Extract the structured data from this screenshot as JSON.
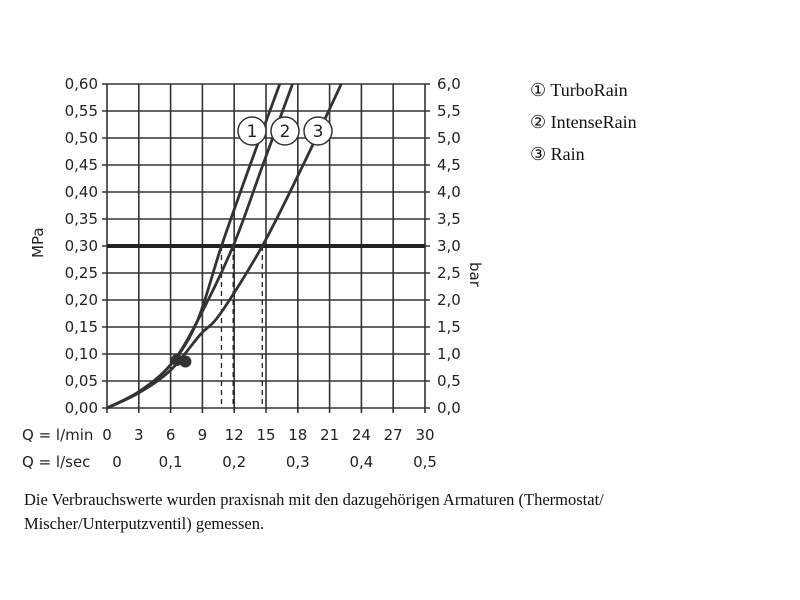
{
  "chart_data": {
    "type": "line",
    "xlabel": "Q = l/min",
    "xlabel2": "Q = l/sec",
    "ylabel": "MPa",
    "ylabel_right": "bar",
    "xlim": [
      0,
      30
    ],
    "ylim": [
      0,
      0.6
    ],
    "x_ticks": [
      "0",
      "3",
      "6",
      "9",
      "12",
      "15",
      "18",
      "21",
      "24",
      "27",
      "30"
    ],
    "x2_ticks": [
      "0",
      "0,1",
      "0,2",
      "0,3",
      "0,4",
      "0,5"
    ],
    "y_ticks": [
      "0,00",
      "0,05",
      "0,10",
      "0,15",
      "0,20",
      "0,25",
      "0,30",
      "0,35",
      "0,40",
      "0,45",
      "0,50",
      "0,55",
      "0,60"
    ],
    "y_right_ticks": [
      "0,0",
      "0,5",
      "1,0",
      "1,5",
      "2,0",
      "2,5",
      "3,0",
      "3,5",
      "4,0",
      "4,5",
      "5,0",
      "5,5",
      "6,0"
    ],
    "reference_line_y": 0.3,
    "grid": true,
    "series": [
      {
        "name": "TurboRain",
        "label": "1",
        "x": [
          0,
          3,
          6,
          8.5,
          10.8,
          13.5,
          16.3
        ],
        "y": [
          0,
          0.03,
          0.08,
          0.16,
          0.3,
          0.45,
          0.6
        ],
        "flow_at_ref": 10.8
      },
      {
        "name": "IntenseRain",
        "label": "2",
        "x": [
          0,
          3,
          6,
          8.5,
          11.9,
          14.7,
          17.5
        ],
        "y": [
          0,
          0.03,
          0.08,
          0.16,
          0.3,
          0.45,
          0.6
        ],
        "flow_at_ref": 11.9
      },
      {
        "name": "Rain",
        "label": "3",
        "x": [
          0,
          3,
          6,
          8.8,
          10.7,
          14.65,
          18.5,
          22.1
        ],
        "y": [
          0,
          0.028,
          0.07,
          0.136,
          0.175,
          0.3,
          0.45,
          0.6
        ],
        "flow_at_ref": 14.65
      }
    ],
    "markers": [
      {
        "x": 6.6,
        "y": 0.089
      },
      {
        "x": 7.4,
        "y": 0.086
      }
    ]
  },
  "legend": [
    {
      "symbol": "①",
      "label": "TurboRain"
    },
    {
      "symbol": "②",
      "label": "IntenseRain"
    },
    {
      "symbol": "③",
      "label": "Rain"
    }
  ],
  "caption": "Die Verbrauchswerte wurden praxisnah mit den dazugehörigen Armaturen (Thermostat/ Mischer/Unterputzventil) gemessen."
}
